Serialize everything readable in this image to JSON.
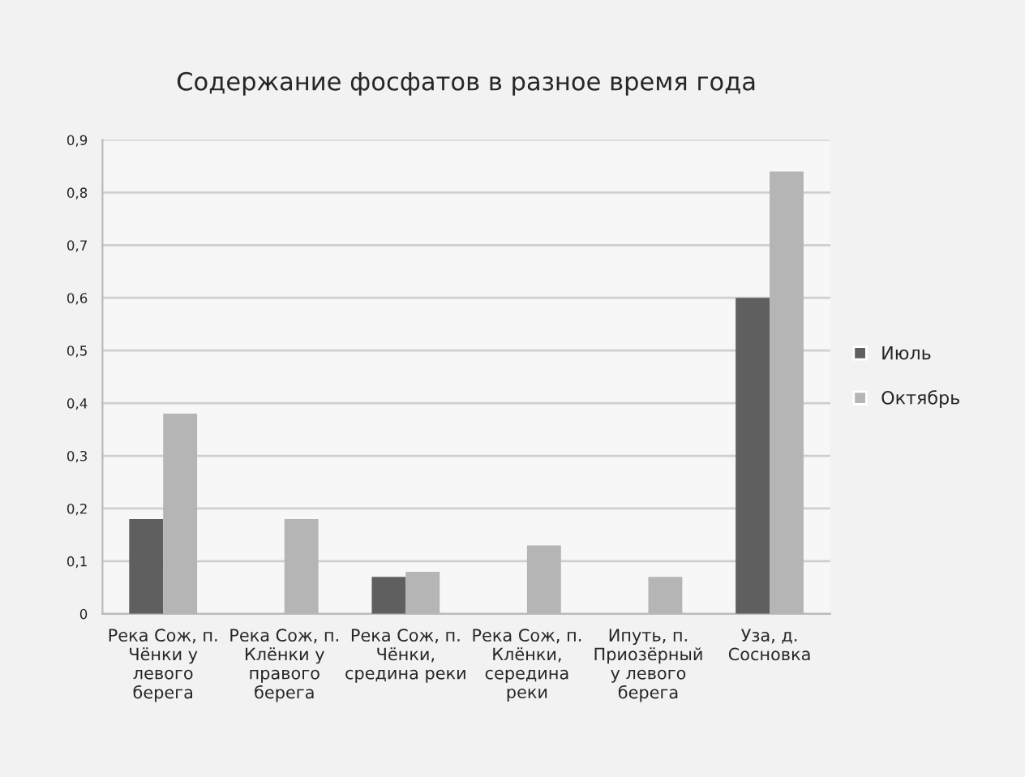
{
  "chart_data": {
    "type": "bar",
    "title": "Содержание фосфатов в разное время года",
    "categories": [
      "Река Сож, п.\nЧёнки у\nлевого\nберега",
      "Река Сож, п.\nКлёнки у\nправого\nберега",
      "Река Сож, п.\nЧёнки,\nсредина реки",
      "Река Сож, п.\nКлёнки,\nсередина\nреки",
      "Ипуть, п.\nПриозёрный\nу левого\nберега",
      "Уза, д.\nСосновка"
    ],
    "series": [
      {
        "name": "Июль",
        "color": "#5f5f5f",
        "values": [
          0.18,
          null,
          0.07,
          null,
          null,
          0.6
        ]
      },
      {
        "name": "Октябрь",
        "color": "#b5b5b5",
        "values": [
          0.38,
          0.18,
          0.08,
          0.13,
          0.07,
          0.84
        ]
      }
    ],
    "ylim": [
      0,
      0.9
    ],
    "yticks": [
      {
        "value": 0,
        "label": "0"
      },
      {
        "value": 0.1,
        "label": "0,1"
      },
      {
        "value": 0.2,
        "label": "0,2"
      },
      {
        "value": 0.3,
        "label": "0,3"
      },
      {
        "value": 0.4,
        "label": "0,4"
      },
      {
        "value": 0.5,
        "label": "0,5"
      },
      {
        "value": 0.6,
        "label": "0,6"
      },
      {
        "value": 0.7,
        "label": "0,7"
      },
      {
        "value": 0.8,
        "label": "0,8"
      },
      {
        "value": 0.9,
        "label": "0,9"
      }
    ],
    "grid": "y",
    "legend": "right"
  }
}
